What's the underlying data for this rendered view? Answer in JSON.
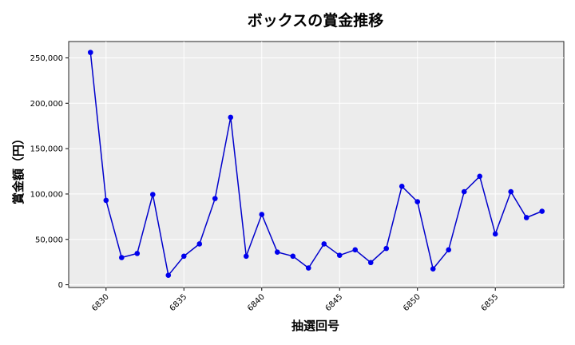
{
  "chart_data": {
    "type": "line",
    "title": "ボックスの賞金推移",
    "xlabel": "抽選回号",
    "ylabel": "賞金額（円）",
    "xlim": [
      6827.6,
      6859.4
    ],
    "ylim": [
      -3000,
      268000
    ],
    "x_ticks": [
      6830,
      6835,
      6840,
      6845,
      6850,
      6855
    ],
    "y_ticks": [
      0,
      50000,
      100000,
      150000,
      200000,
      250000
    ],
    "y_tick_labels": [
      "0",
      "50,000",
      "100,000",
      "150,000",
      "200,000",
      "250,000"
    ],
    "grid": true,
    "series": [
      {
        "color": "#0000cc",
        "marker_color": "#0000ee",
        "x": [
          6829,
          6830,
          6831,
          6832,
          6833,
          6834,
          6835,
          6836,
          6837,
          6838,
          6839,
          6840,
          6841,
          6842,
          6843,
          6844,
          6845,
          6846,
          6847,
          6848,
          6849,
          6850,
          6851,
          6852,
          6853,
          6854,
          6855,
          6856,
          6857,
          6858
        ],
        "y": [
          256000,
          93000,
          30000,
          34500,
          99500,
          10500,
          31500,
          45000,
          95000,
          184500,
          31500,
          77500,
          36000,
          31500,
          18500,
          45000,
          32500,
          38500,
          24500,
          40000,
          108500,
          91500,
          17500,
          38500,
          102500,
          119500,
          56000,
          102500,
          74000,
          81000
        ]
      }
    ]
  }
}
